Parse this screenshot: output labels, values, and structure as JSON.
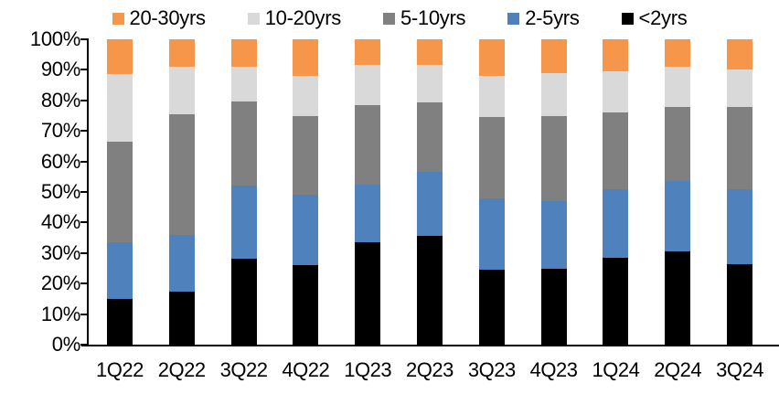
{
  "chart_data": {
    "type": "bar",
    "stacked": true,
    "percent_stacked": true,
    "title": "",
    "xlabel": "",
    "ylabel": "",
    "grid": false,
    "legend_position": "top",
    "legend_order": [
      "20-30yrs",
      "10-20yrs",
      "5-10yrs",
      "2-5yrs",
      "<2yrs"
    ],
    "categories": [
      "1Q22",
      "2Q22",
      "3Q22",
      "4Q22",
      "1Q23",
      "2Q23",
      "3Q23",
      "4Q23",
      "1Q24",
      "2Q24",
      "3Q24"
    ],
    "series": [
      {
        "name": "<2yrs",
        "color": "#000000",
        "values": [
          15,
          17.5,
          28,
          26,
          33.5,
          35.5,
          24.5,
          25,
          28.5,
          30.5,
          26.5
        ]
      },
      {
        "name": "2-5yrs",
        "color": "#4F81BD",
        "values": [
          18.5,
          18.5,
          24,
          23,
          19,
          21,
          23.5,
          22,
          22.5,
          23,
          24.5
        ]
      },
      {
        "name": "5-10yrs",
        "color": "#808080",
        "values": [
          33,
          39.5,
          27.5,
          26,
          26,
          23,
          26.5,
          28,
          25,
          24.5,
          27
        ]
      },
      {
        "name": "10-20yrs",
        "color": "#D9D9D9",
        "values": [
          22,
          15.5,
          11.5,
          13,
          13,
          12,
          13.5,
          14,
          13.5,
          13,
          12
        ]
      },
      {
        "name": "20-30yrs",
        "color": "#F6964A",
        "values": [
          11.5,
          9,
          9,
          12,
          8.5,
          8.5,
          12,
          11,
          10.5,
          9,
          10
        ]
      }
    ],
    "y_axis": {
      "min": 0,
      "max": 100,
      "step": 10,
      "unit": "%",
      "tick_labels": [
        "0%",
        "10%",
        "20%",
        "30%",
        "40%",
        "50%",
        "60%",
        "70%",
        "80%",
        "90%",
        "100%"
      ]
    }
  }
}
